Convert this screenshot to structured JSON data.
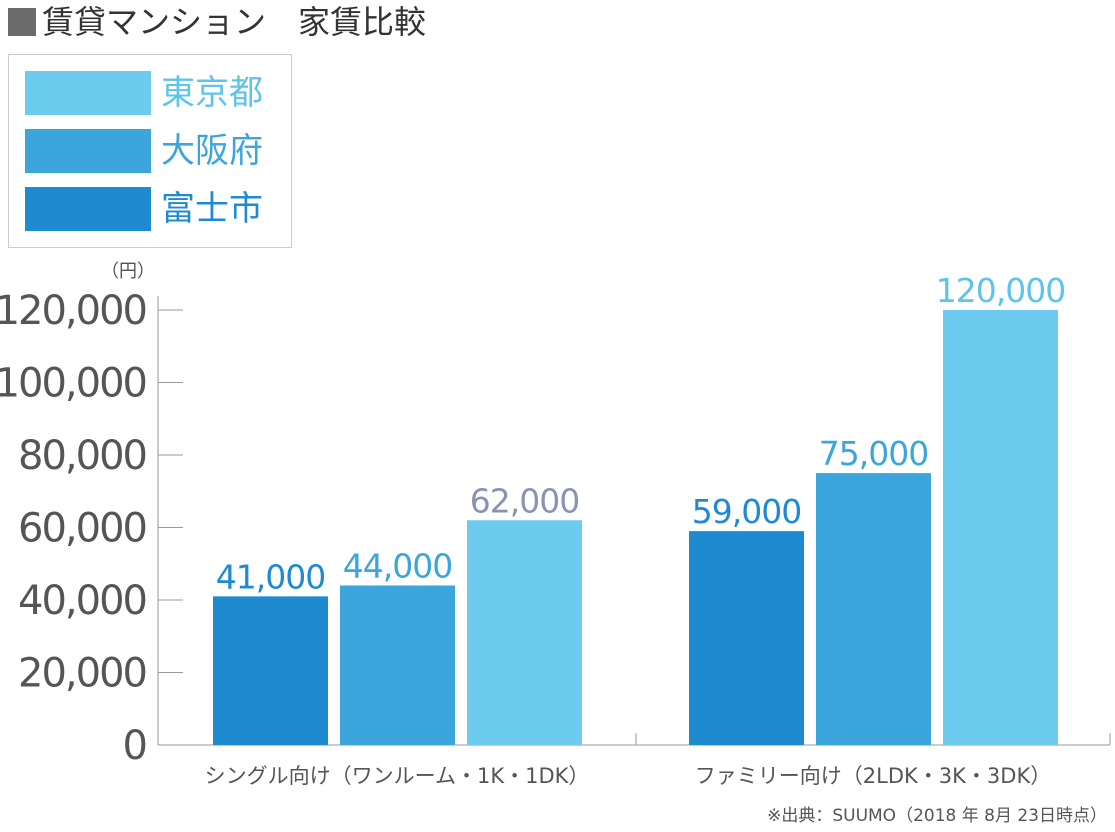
{
  "title": "賃貸マンション　家賃比較",
  "colors": {
    "tokyo": "#6ccbef",
    "osaka": "#3ba5dc",
    "fuji": "#1e8bd0",
    "axis": "#999999",
    "tick_text": "#555555"
  },
  "legend": [
    {
      "label": "東京都",
      "color": "#6ccbef"
    },
    {
      "label": "大阪府",
      "color": "#3ba5dc"
    },
    {
      "label": "富士市",
      "color": "#1e8bd0"
    }
  ],
  "chart_data": {
    "type": "bar",
    "title": "賃貸マンション　家賃比較",
    "ylabel": "（円）",
    "ylim": [
      0,
      120000
    ],
    "yticks": [
      0,
      20000,
      40000,
      60000,
      80000,
      100000,
      120000
    ],
    "ytick_labels": [
      "0",
      "20,000",
      "40,000",
      "60,000",
      "80,000",
      "100,000",
      "120,000"
    ],
    "categories": [
      "シングル向け（ワンルーム・1K・1DK）",
      "ファミリー向け（2LDK・3K・3DK）"
    ],
    "series": [
      {
        "name": "富士市",
        "color": "#1e8bd0",
        "values": [
          41000,
          59000
        ],
        "labels": [
          "41,000",
          "59,000"
        ]
      },
      {
        "name": "大阪府",
        "color": "#3ba5dc",
        "values": [
          44000,
          75000
        ],
        "labels": [
          "44,000",
          "75,000"
        ]
      },
      {
        "name": "東京都",
        "color": "#6ccbef",
        "values": [
          62000,
          120000
        ],
        "labels": [
          "62,000",
          "120,000"
        ]
      }
    ],
    "label_colors": [
      [
        "#1e8bd0",
        "#1e8bd0"
      ],
      [
        "#3ba5dc",
        "#3ba5dc"
      ],
      [
        "#8a93b3",
        "#5fc4ea"
      ]
    ],
    "grid": false,
    "legend_position": "top-left"
  },
  "source": "※出典：SUUMO（2018 年 8月 23日時点）"
}
